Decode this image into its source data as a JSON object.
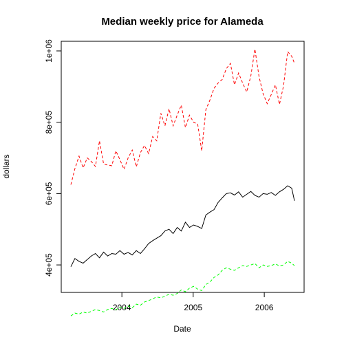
{
  "chart_data": {
    "type": "line",
    "title": "Median weekly price for Alameda",
    "xlabel": "Date",
    "ylabel": "dollars",
    "xlim": [
      "2003-04-14",
      "2006-06-05"
    ],
    "ylim": [
      350000,
      1000000
    ],
    "x_ticks": [
      {
        "date": "2004-01-01",
        "label": "2004"
      },
      {
        "date": "2005-01-01",
        "label": "2005"
      },
      {
        "date": "2006-01-01",
        "label": "2006"
      }
    ],
    "y_ticks": [
      {
        "value": 400000,
        "label": "4e+05"
      },
      {
        "value": 600000,
        "label": "6e+05"
      },
      {
        "value": 800000,
        "label": "8e+05"
      },
      {
        "value": 1000000,
        "label": "1e+06"
      }
    ],
    "grid": false,
    "legend": "none",
    "series": [
      {
        "color": "#ff0000",
        "line_style": "dashed",
        "points": [
          [
            "2003-04-14",
            625000
          ],
          [
            "2003-05-05",
            670000
          ],
          [
            "2003-05-26",
            705000
          ],
          [
            "2003-06-16",
            672000
          ],
          [
            "2003-07-07",
            700000
          ],
          [
            "2003-07-28",
            690000
          ],
          [
            "2003-08-18",
            676000
          ],
          [
            "2003-09-08",
            748000
          ],
          [
            "2003-09-29",
            683000
          ],
          [
            "2003-10-20",
            680000
          ],
          [
            "2003-11-10",
            678000
          ],
          [
            "2003-12-01",
            720000
          ],
          [
            "2003-12-22",
            695000
          ],
          [
            "2004-01-12",
            668000
          ],
          [
            "2004-02-02",
            700000
          ],
          [
            "2004-02-23",
            722000
          ],
          [
            "2004-03-15",
            675000
          ],
          [
            "2004-04-05",
            715000
          ],
          [
            "2004-04-26",
            735000
          ],
          [
            "2004-05-17",
            712000
          ],
          [
            "2004-06-07",
            760000
          ],
          [
            "2004-06-28",
            748000
          ],
          [
            "2004-07-19",
            825000
          ],
          [
            "2004-08-09",
            790000
          ],
          [
            "2004-08-30",
            838000
          ],
          [
            "2004-09-20",
            790000
          ],
          [
            "2004-10-11",
            820000
          ],
          [
            "2004-11-01",
            848000
          ],
          [
            "2004-11-22",
            785000
          ],
          [
            "2004-12-13",
            820000
          ],
          [
            "2005-01-03",
            800000
          ],
          [
            "2005-01-24",
            795000
          ],
          [
            "2005-02-14",
            720000
          ],
          [
            "2005-03-07",
            835000
          ],
          [
            "2005-03-28",
            862000
          ],
          [
            "2005-04-18",
            895000
          ],
          [
            "2005-05-09",
            910000
          ],
          [
            "2005-05-30",
            920000
          ],
          [
            "2005-06-20",
            950000
          ],
          [
            "2005-07-11",
            965000
          ],
          [
            "2005-08-01",
            905000
          ],
          [
            "2005-08-22",
            938000
          ],
          [
            "2005-09-12",
            910000
          ],
          [
            "2005-10-03",
            885000
          ],
          [
            "2005-10-24",
            930000
          ],
          [
            "2005-11-14",
            1005000
          ],
          [
            "2005-12-05",
            928000
          ],
          [
            "2005-12-26",
            880000
          ],
          [
            "2006-01-16",
            852000
          ],
          [
            "2006-02-06",
            878000
          ],
          [
            "2006-02-27",
            905000
          ],
          [
            "2006-03-20",
            850000
          ],
          [
            "2006-04-10",
            902000
          ],
          [
            "2006-05-01",
            998000
          ],
          [
            "2006-05-22",
            985000
          ],
          [
            "2006-06-05",
            965000
          ]
        ]
      },
      {
        "color": "#000000",
        "line_style": "solid",
        "points": [
          [
            "2003-04-14",
            395000
          ],
          [
            "2003-05-05",
            418000
          ],
          [
            "2003-05-26",
            410000
          ],
          [
            "2003-06-16",
            405000
          ],
          [
            "2003-07-07",
            415000
          ],
          [
            "2003-07-28",
            425000
          ],
          [
            "2003-08-18",
            432000
          ],
          [
            "2003-09-08",
            420000
          ],
          [
            "2003-09-29",
            436000
          ],
          [
            "2003-10-20",
            425000
          ],
          [
            "2003-11-10",
            432000
          ],
          [
            "2003-12-01",
            430000
          ],
          [
            "2003-12-22",
            440000
          ],
          [
            "2004-01-12",
            430000
          ],
          [
            "2004-02-02",
            435000
          ],
          [
            "2004-02-23",
            428000
          ],
          [
            "2004-03-15",
            440000
          ],
          [
            "2004-04-05",
            432000
          ],
          [
            "2004-04-26",
            445000
          ],
          [
            "2004-05-17",
            460000
          ],
          [
            "2004-06-07",
            468000
          ],
          [
            "2004-06-28",
            475000
          ],
          [
            "2004-07-19",
            482000
          ],
          [
            "2004-08-09",
            495000
          ],
          [
            "2004-08-30",
            500000
          ],
          [
            "2004-09-20",
            488000
          ],
          [
            "2004-10-11",
            505000
          ],
          [
            "2004-11-01",
            495000
          ],
          [
            "2004-11-22",
            520000
          ],
          [
            "2004-12-13",
            505000
          ],
          [
            "2005-01-03",
            512000
          ],
          [
            "2005-01-24",
            508000
          ],
          [
            "2005-02-14",
            502000
          ],
          [
            "2005-03-07",
            540000
          ],
          [
            "2005-03-28",
            548000
          ],
          [
            "2005-04-18",
            555000
          ],
          [
            "2005-05-09",
            575000
          ],
          [
            "2005-05-30",
            588000
          ],
          [
            "2005-06-20",
            600000
          ],
          [
            "2005-07-11",
            602000
          ],
          [
            "2005-08-01",
            596000
          ],
          [
            "2005-08-22",
            605000
          ],
          [
            "2005-09-12",
            590000
          ],
          [
            "2005-10-03",
            598000
          ],
          [
            "2005-10-24",
            606000
          ],
          [
            "2005-11-14",
            595000
          ],
          [
            "2005-12-05",
            590000
          ],
          [
            "2005-12-26",
            600000
          ],
          [
            "2006-01-16",
            598000
          ],
          [
            "2006-02-06",
            603000
          ],
          [
            "2006-02-27",
            595000
          ],
          [
            "2006-03-20",
            605000
          ],
          [
            "2006-04-10",
            612000
          ],
          [
            "2006-05-01",
            622000
          ],
          [
            "2006-05-22",
            615000
          ],
          [
            "2006-06-05",
            580000
          ]
        ]
      },
      {
        "color": "#00ff00",
        "line_style": "dashed",
        "points": [
          [
            "2003-04-14",
            257000
          ],
          [
            "2003-05-05",
            265000
          ],
          [
            "2003-05-26",
            262000
          ],
          [
            "2003-06-16",
            268000
          ],
          [
            "2003-07-07",
            265000
          ],
          [
            "2003-07-28",
            270000
          ],
          [
            "2003-08-18",
            275000
          ],
          [
            "2003-09-08",
            272000
          ],
          [
            "2003-09-29",
            268000
          ],
          [
            "2003-10-20",
            275000
          ],
          [
            "2003-11-10",
            278000
          ],
          [
            "2003-12-01",
            274000
          ],
          [
            "2003-12-22",
            282000
          ],
          [
            "2004-01-12",
            278000
          ],
          [
            "2004-02-02",
            285000
          ],
          [
            "2004-02-23",
            280000
          ],
          [
            "2004-03-15",
            290000
          ],
          [
            "2004-04-05",
            287000
          ],
          [
            "2004-04-26",
            296000
          ],
          [
            "2004-05-17",
            300000
          ],
          [
            "2004-06-07",
            305000
          ],
          [
            "2004-06-28",
            310000
          ],
          [
            "2004-07-19",
            308000
          ],
          [
            "2004-08-09",
            312000
          ],
          [
            "2004-08-30",
            318000
          ],
          [
            "2004-09-20",
            315000
          ],
          [
            "2004-10-11",
            320000
          ],
          [
            "2004-11-01",
            330000
          ],
          [
            "2004-11-22",
            325000
          ],
          [
            "2004-12-13",
            335000
          ],
          [
            "2005-01-03",
            340000
          ],
          [
            "2005-01-24",
            332000
          ],
          [
            "2005-02-14",
            328000
          ],
          [
            "2005-03-07",
            345000
          ],
          [
            "2005-03-28",
            352000
          ],
          [
            "2005-04-18",
            365000
          ],
          [
            "2005-05-09",
            372000
          ],
          [
            "2005-05-30",
            385000
          ],
          [
            "2005-06-20",
            392000
          ],
          [
            "2005-07-11",
            388000
          ],
          [
            "2005-08-01",
            385000
          ],
          [
            "2005-08-22",
            392000
          ],
          [
            "2005-09-12",
            398000
          ],
          [
            "2005-10-03",
            396000
          ],
          [
            "2005-10-24",
            400000
          ],
          [
            "2005-11-14",
            404000
          ],
          [
            "2005-12-05",
            392000
          ],
          [
            "2005-12-26",
            400000
          ],
          [
            "2006-01-16",
            396000
          ],
          [
            "2006-02-06",
            398000
          ],
          [
            "2006-02-27",
            403000
          ],
          [
            "2006-03-20",
            397000
          ],
          [
            "2006-04-10",
            400000
          ],
          [
            "2006-05-01",
            410000
          ],
          [
            "2006-05-22",
            405000
          ],
          [
            "2006-06-05",
            398000
          ]
        ]
      }
    ]
  }
}
